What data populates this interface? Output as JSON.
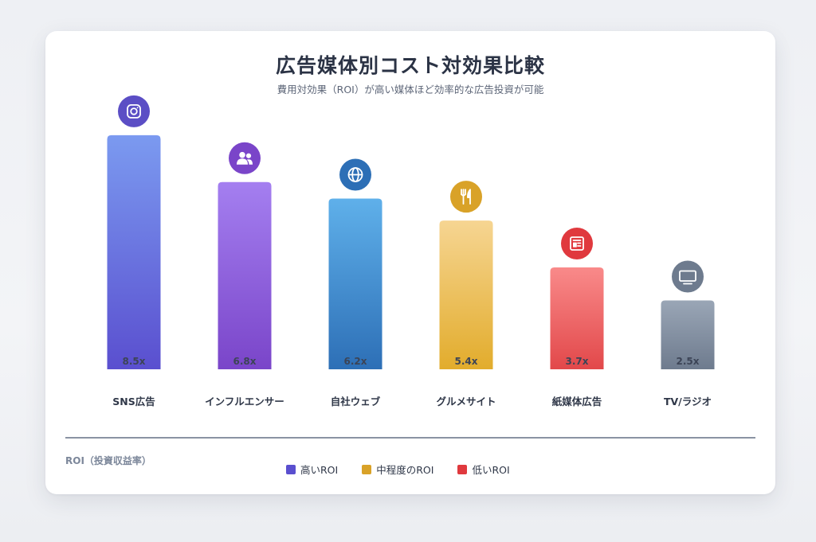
{
  "chart_data": {
    "type": "bar",
    "title": "広告媒体別コスト対効果比較",
    "subtitle": "費用対効果（ROI）が高い媒体ほど効率的な広告投資が可能",
    "ylabel": "ROI（投資収益率）",
    "ylim": [
      0,
      9.5
    ],
    "grid": false,
    "legend_position": "bottom",
    "categories": [
      "SNS広告",
      "インフルエンサー",
      "自社ウェブ",
      "グルメサイト",
      "紙媒体広告",
      "TV/ラジオ"
    ],
    "values": [
      8.5,
      6.8,
      6.2,
      5.4,
      3.7,
      2.5
    ],
    "data_labels": [
      "8.5x",
      "6.8x",
      "6.2x",
      "5.4x",
      "3.7x",
      "2.5x"
    ],
    "icons": [
      "instagram-icon",
      "users-icon",
      "globe-icon",
      "utensils-icon",
      "newspaper-icon",
      "tv-icon"
    ],
    "bar_colors": [
      [
        "#7b9af0",
        "#5a4fcf"
      ],
      [
        "#a47ff0",
        "#7a45c9"
      ],
      [
        "#5fb0ea",
        "#2d6fb6"
      ],
      [
        "#f6d592",
        "#e2ac2c"
      ],
      [
        "#f98a8a",
        "#e2484a"
      ],
      [
        "#9aa6b6",
        "#6e7b8e"
      ]
    ],
    "icon_colors": [
      "#5b4ec5",
      "#7a45c9",
      "#2d6fb6",
      "#d9a228",
      "#e0393e",
      "#6e7b8e"
    ],
    "legend": [
      {
        "label": "高いROI",
        "color": "#5a4fcf"
      },
      {
        "label": "中程度のROI",
        "color": "#d9a228"
      },
      {
        "label": "低いROI",
        "color": "#e0393e"
      }
    ]
  }
}
